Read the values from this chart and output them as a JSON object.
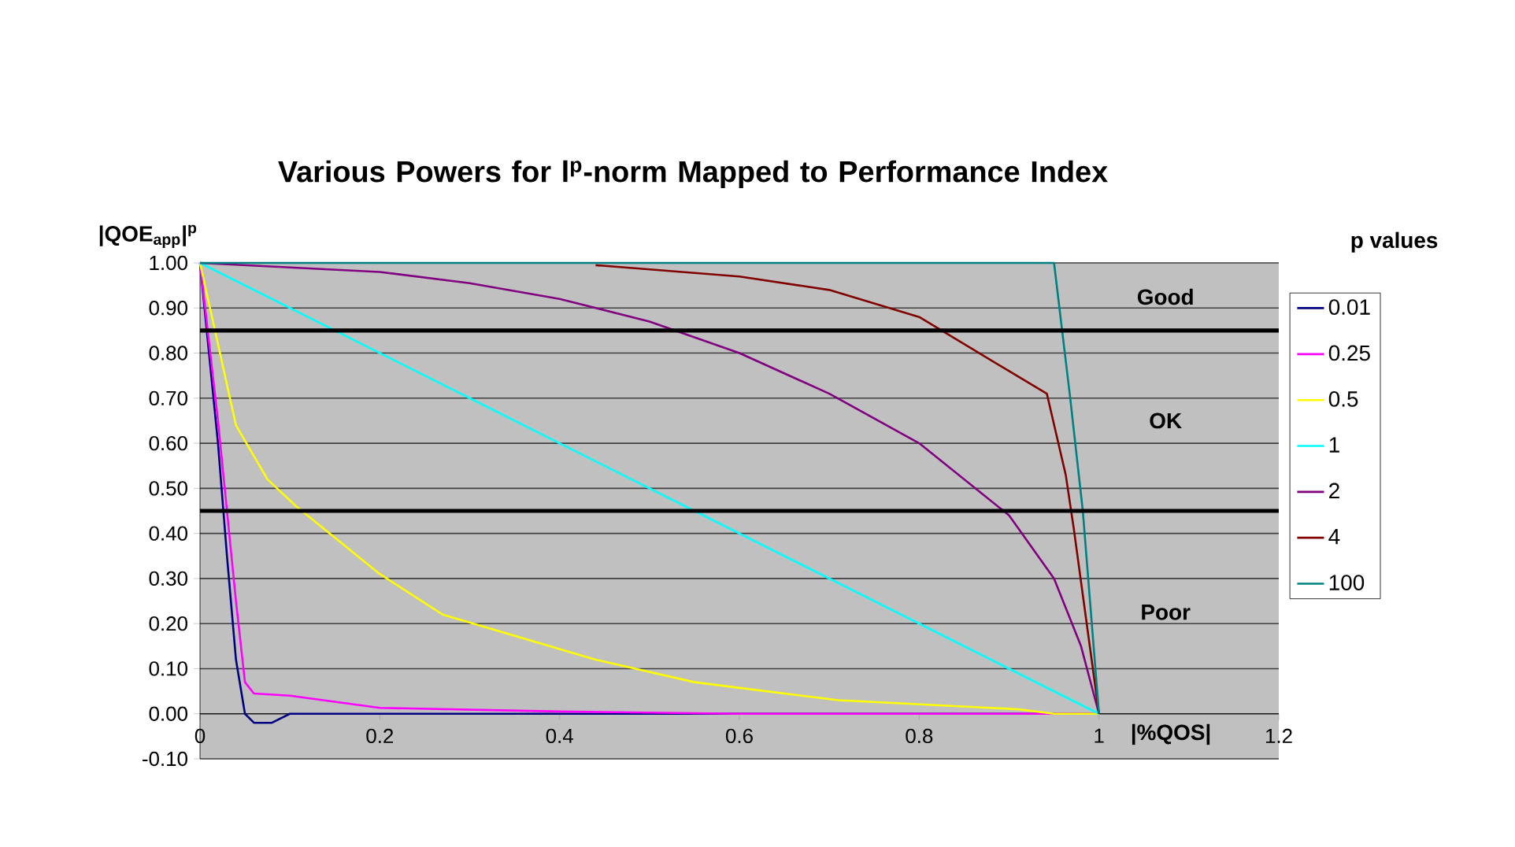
{
  "chart_data": {
    "type": "line",
    "title": "Various Powers for l$^{p}$-norm Mapped to Performance Index",
    "xlabel": "|%QOS|",
    "ylabel": "|QOE$_{app}$|$^{p}$",
    "legend_title": "p values",
    "annotations": [
      "Good",
      "OK",
      "Poor"
    ],
    "xlim": [
      0,
      1.2
    ],
    "xticks": [
      0,
      0.2,
      0.4,
      0.6,
      0.8,
      1,
      1.2
    ],
    "ylim": [
      -0.1,
      1.0
    ],
    "yticks": [
      {
        "value": -0.1,
        "label": "-0.10"
      },
      {
        "value": 0,
        "label": "0.00"
      },
      {
        "value": 0.1,
        "label": "0.10"
      },
      {
        "value": 0.2,
        "label": "0.20"
      },
      {
        "value": 0.3,
        "label": "0.30"
      },
      {
        "value": 0.4,
        "label": "0.40"
      },
      {
        "value": 0.5,
        "label": "0.50"
      },
      {
        "value": 0.6,
        "label": "0.60"
      },
      {
        "value": 0.7,
        "label": "0.70"
      },
      {
        "value": 0.8,
        "label": "0.80"
      },
      {
        "value": 0.9,
        "label": "0.90"
      },
      {
        "value": 1.0,
        "label": "1.00"
      }
    ],
    "grid": "y",
    "legend": "right",
    "ref_lines": [
      {
        "axis": "y",
        "value": 0.85,
        "color": "#000000"
      },
      {
        "axis": "y",
        "value": 0.45,
        "color": "#000000"
      }
    ],
    "series": [
      {
        "name": "0.01",
        "color": "#000080",
        "x": [
          0,
          0.02,
          0.03,
          0.04,
          0.05,
          0.06,
          0.08,
          0.1,
          0.2,
          1
        ],
        "values": [
          1,
          0.6,
          0.35,
          0.12,
          0.0,
          -0.02,
          -0.02,
          0,
          0,
          0
        ]
      },
      {
        "name": "0.25",
        "color": "#ff00ff",
        "x": [
          0,
          0.02,
          0.04,
          0.05,
          0.06,
          0.1,
          0.2,
          0.4,
          0.6,
          1
        ],
        "values": [
          1,
          0.65,
          0.25,
          0.07,
          0.045,
          0.04,
          0.013,
          0.005,
          0,
          0
        ]
      },
      {
        "name": "0.5",
        "color": "#ffff00",
        "x": [
          0,
          0.04,
          0.075,
          0.107,
          0.2,
          0.27,
          0.44,
          0.55,
          0.71,
          0.91,
          0.95,
          1
        ],
        "values": [
          1,
          0.64,
          0.52,
          0.46,
          0.31,
          0.22,
          0.12,
          0.07,
          0.03,
          0.01,
          0,
          0
        ]
      },
      {
        "name": "1",
        "color": "#00ffff",
        "x": [
          0,
          0.5,
          1
        ],
        "values": [
          1,
          0.5,
          0
        ]
      },
      {
        "name": "2",
        "color": "#800080",
        "x": [
          0,
          0.2,
          0.3,
          0.4,
          0.5,
          0.6,
          0.7,
          0.8,
          0.9,
          0.95,
          0.98,
          1
        ],
        "values": [
          1,
          0.98,
          0.955,
          0.92,
          0.87,
          0.8,
          0.71,
          0.6,
          0.44,
          0.3,
          0.15,
          0
        ]
      },
      {
        "name": "4",
        "color": "#800000",
        "x": [
          0.44,
          0.6,
          0.7,
          0.8,
          0.9,
          0.942,
          0.963,
          0.972,
          1
        ],
        "values": [
          0.995,
          0.97,
          0.94,
          0.88,
          0.76,
          0.71,
          0.53,
          0.41,
          0
        ]
      },
      {
        "name": "100",
        "color": "#008080",
        "x": [
          0,
          0.95,
          0.968,
          0.982,
          1
        ],
        "values": [
          1,
          1,
          0.7,
          0.45,
          0
        ]
      }
    ]
  }
}
